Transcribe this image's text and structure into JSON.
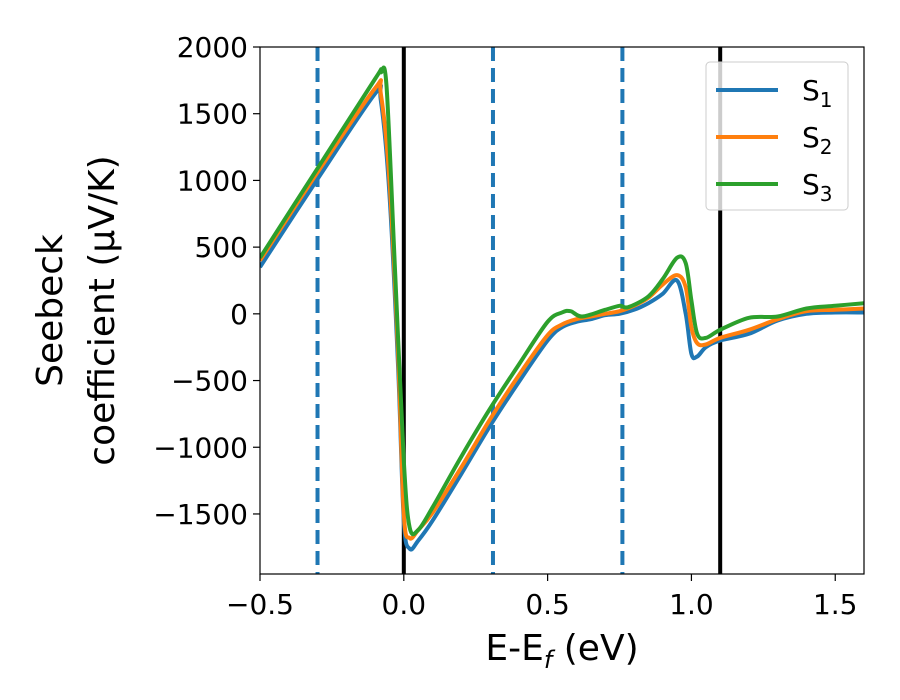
{
  "chart_data": {
    "type": "line",
    "title": "",
    "xlabel": {
      "main": "E-E",
      "sub": "f",
      "suffix": " (eV)"
    },
    "ylabel": {
      "line1": "Seebeck",
      "line2": "coefficient  (μV/K)"
    },
    "xlim": [
      -0.5,
      1.6
    ],
    "ylim": [
      -1950,
      2000
    ],
    "xticks": [
      -0.5,
      0.0,
      0.5,
      1.0,
      1.5
    ],
    "xtick_labels": [
      "−0.5",
      "0.0",
      "0.5",
      "1.0",
      "1.5"
    ],
    "yticks": [
      -1500,
      -1000,
      -500,
      0,
      500,
      1000,
      1500,
      2000
    ],
    "ytick_labels": [
      "−1500",
      "−1000",
      "−500",
      "0",
      "500",
      "1000",
      "1500",
      "2000"
    ],
    "grid": false,
    "legend_position": "top-right",
    "vlines_dashed": {
      "x": [
        -0.3,
        0.31,
        0.76
      ],
      "color": "#1f77b4"
    },
    "vlines_solid": {
      "x": [
        0.0,
        1.1
      ],
      "color": "#000000"
    },
    "series": [
      {
        "name": "S",
        "sub": "1",
        "color": "#1f77b4",
        "x": [
          -0.5,
          -0.3,
          -0.1,
          -0.08,
          -0.05,
          -0.02,
          0.0,
          0.02,
          0.05,
          0.1,
          0.2,
          0.3,
          0.4,
          0.5,
          0.55,
          0.6,
          0.65,
          0.7,
          0.75,
          0.8,
          0.85,
          0.9,
          0.95,
          0.98,
          1.0,
          1.02,
          1.05,
          1.1,
          1.2,
          1.3,
          1.4,
          1.5,
          1.6
        ],
        "y": [
          350,
          1010,
          1650,
          1600,
          900,
          -400,
          -1550,
          -1760,
          -1700,
          -1550,
          -1200,
          -840,
          -510,
          -200,
          -100,
          -60,
          -40,
          -10,
          0,
          30,
          80,
          150,
          250,
          0,
          -300,
          -320,
          -250,
          -200,
          -150,
          -50,
          0,
          10,
          10
        ]
      },
      {
        "name": "S",
        "sub": "2",
        "color": "#ff7f0e",
        "x": [
          -0.5,
          -0.3,
          -0.1,
          -0.08,
          -0.05,
          -0.02,
          0.0,
          0.02,
          0.05,
          0.1,
          0.2,
          0.3,
          0.4,
          0.5,
          0.55,
          0.6,
          0.65,
          0.7,
          0.75,
          0.8,
          0.85,
          0.9,
          0.95,
          0.98,
          1.0,
          1.02,
          1.05,
          1.1,
          1.2,
          1.3,
          1.4,
          1.5,
          1.6
        ],
        "y": [
          400,
          1060,
          1690,
          1650,
          1000,
          -300,
          -1500,
          -1680,
          -1620,
          -1490,
          -1150,
          -790,
          -460,
          -160,
          -80,
          -40,
          -20,
          0,
          20,
          60,
          120,
          220,
          290,
          200,
          -100,
          -220,
          -230,
          -180,
          -120,
          -40,
          20,
          30,
          40
        ]
      },
      {
        "name": "S",
        "sub": "3",
        "color": "#2ca02c",
        "x": [
          -0.5,
          -0.3,
          -0.1,
          -0.08,
          -0.06,
          -0.03,
          0.0,
          0.02,
          0.05,
          0.1,
          0.2,
          0.3,
          0.4,
          0.5,
          0.55,
          0.58,
          0.62,
          0.7,
          0.75,
          0.78,
          0.85,
          0.9,
          0.95,
          0.98,
          1.0,
          1.02,
          1.05,
          1.1,
          1.2,
          1.3,
          1.4,
          1.5,
          1.6
        ],
        "y": [
          420,
          1090,
          1760,
          1810,
          1700,
          300,
          -1100,
          -1600,
          -1620,
          -1450,
          -1070,
          -710,
          -380,
          -60,
          10,
          20,
          -20,
          30,
          60,
          50,
          130,
          260,
          420,
          380,
          100,
          -150,
          -180,
          -120,
          -30,
          -20,
          40,
          60,
          80
        ]
      }
    ]
  }
}
